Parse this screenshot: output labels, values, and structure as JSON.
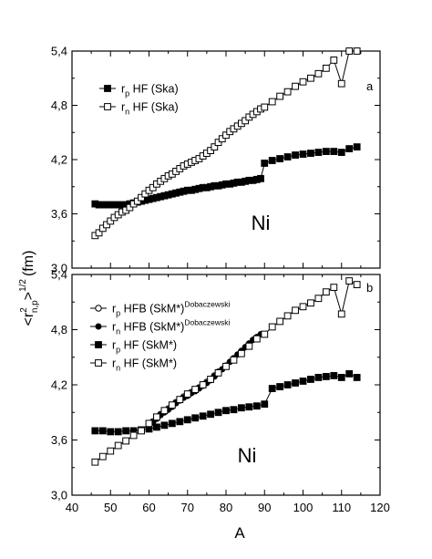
{
  "figure": {
    "x_axis_label": "A",
    "y_axis_label": {
      "base": "<r",
      "sup": "2",
      "sub": "n,p",
      "after": ">",
      "exp": "1/2",
      "unit": "(fm)"
    }
  },
  "chart_data": [
    {
      "type": "line",
      "panel_label": "a",
      "annotation": "Ni",
      "xlim": [
        40,
        120
      ],
      "ylim": [
        3.0,
        5.4
      ],
      "x_ticks": [
        "40",
        "50",
        "60",
        "70",
        "80",
        "90",
        "100",
        "110",
        "120"
      ],
      "y_ticks": [
        "3,0",
        "3,6",
        "4,2",
        "4,8",
        "5,4"
      ],
      "legend_placement": "top-left",
      "series": [
        {
          "label_main": "r",
          "label_sub": "p",
          "label_rest": " HF (Ska)",
          "marker": "filled-square",
          "x": [
            46,
            47,
            48,
            49,
            50,
            51,
            52,
            53,
            54,
            55,
            56,
            57,
            58,
            59,
            60,
            61,
            62,
            63,
            64,
            65,
            66,
            67,
            68,
            69,
            70,
            71,
            72,
            73,
            74,
            75,
            76,
            77,
            78,
            79,
            80,
            81,
            82,
            83,
            84,
            85,
            86,
            87,
            88,
            89,
            90,
            92,
            94,
            96,
            98,
            100,
            102,
            104,
            106,
            108,
            110,
            112,
            114
          ],
          "y": [
            3.71,
            3.7,
            3.7,
            3.7,
            3.7,
            3.7,
            3.7,
            3.7,
            3.7,
            3.71,
            3.72,
            3.73,
            3.74,
            3.75,
            3.76,
            3.77,
            3.78,
            3.79,
            3.8,
            3.81,
            3.82,
            3.83,
            3.84,
            3.85,
            3.86,
            3.86,
            3.87,
            3.88,
            3.89,
            3.89,
            3.9,
            3.91,
            3.91,
            3.92,
            3.93,
            3.93,
            3.94,
            3.95,
            3.95,
            3.96,
            3.97,
            3.97,
            3.98,
            3.99,
            4.16,
            4.19,
            4.21,
            4.23,
            4.25,
            4.26,
            4.27,
            4.28,
            4.29,
            4.29,
            4.28,
            4.32,
            4.34
          ]
        },
        {
          "label_main": "r",
          "label_sub": "n",
          "label_rest": " HF (Ska)",
          "marker": "open-square",
          "x": [
            46,
            47,
            48,
            49,
            50,
            51,
            52,
            53,
            54,
            55,
            56,
            57,
            58,
            59,
            60,
            61,
            62,
            63,
            64,
            65,
            66,
            67,
            68,
            69,
            70,
            71,
            72,
            73,
            74,
            75,
            76,
            77,
            78,
            79,
            80,
            81,
            82,
            83,
            84,
            85,
            86,
            87,
            88,
            89,
            90,
            92,
            94,
            96,
            98,
            100,
            102,
            104,
            106,
            108,
            110,
            112,
            114
          ],
          "y": [
            3.36,
            3.39,
            3.44,
            3.48,
            3.52,
            3.56,
            3.59,
            3.62,
            3.64,
            3.67,
            3.71,
            3.74,
            3.78,
            3.82,
            3.86,
            3.89,
            3.93,
            3.96,
            3.99,
            4.02,
            4.04,
            4.07,
            4.1,
            4.13,
            4.15,
            4.17,
            4.19,
            4.21,
            4.24,
            4.27,
            4.3,
            4.34,
            4.39,
            4.43,
            4.47,
            4.51,
            4.54,
            4.57,
            4.6,
            4.63,
            4.67,
            4.7,
            4.73,
            4.76,
            4.78,
            4.84,
            4.9,
            4.95,
            5.01,
            5.06,
            5.1,
            5.15,
            5.21,
            5.3,
            5.04,
            5.4,
            5.4
          ]
        }
      ]
    },
    {
      "type": "line",
      "panel_label": "b",
      "annotation": "Ni",
      "xlim": [
        40,
        120
      ],
      "ylim": [
        3.0,
        5.4
      ],
      "x_ticks": [
        "40",
        "50",
        "60",
        "70",
        "80",
        "90",
        "100",
        "110",
        "120"
      ],
      "y_ticks": [
        "3,0",
        "3,6",
        "4,2",
        "4,8",
        "5,4"
      ],
      "legend_placement": "top-left",
      "series": [
        {
          "label_main": "r",
          "label_sub": "p",
          "label_rest": " HFB (SkM*)",
          "label_sup": "Dobaczewski",
          "marker": "open-circle",
          "x": [
            60,
            61,
            62,
            63,
            64,
            65,
            66,
            67,
            68,
            69,
            70,
            71,
            72,
            73,
            74,
            75,
            76,
            77,
            78
          ],
          "y": [
            3.76,
            3.8,
            3.84,
            3.88,
            3.91,
            3.94,
            3.97,
            4.01,
            4.04,
            4.07,
            4.09,
            4.12,
            4.14,
            4.17,
            4.2,
            4.23,
            4.26,
            4.3,
            4.34
          ]
        },
        {
          "label_main": "r",
          "label_sub": "n",
          "label_rest": " HFB (SkM*)",
          "label_sup": "Dobaczewski",
          "marker": "filled-circle",
          "x": [
            60,
            61,
            62,
            63,
            64,
            65,
            66,
            67,
            68,
            69,
            70,
            71,
            72,
            73,
            74,
            75,
            76,
            77,
            78,
            79,
            80,
            81,
            82,
            83,
            84,
            85,
            86,
            87,
            88,
            89
          ],
          "y": [
            3.76,
            3.79,
            3.83,
            3.87,
            3.9,
            3.93,
            3.96,
            4.0,
            4.03,
            4.06,
            4.08,
            4.11,
            4.13,
            4.16,
            4.19,
            4.22,
            4.25,
            4.29,
            4.33,
            4.37,
            4.41,
            4.45,
            4.49,
            4.53,
            4.57,
            4.61,
            4.65,
            4.69,
            4.72,
            4.75
          ]
        },
        {
          "label_main": "r",
          "label_sub": "p",
          "label_rest": " HF (SkM*)",
          "marker": "filled-square",
          "x": [
            46,
            48,
            50,
            52,
            54,
            56,
            58,
            60,
            62,
            64,
            66,
            68,
            70,
            72,
            74,
            76,
            78,
            80,
            82,
            84,
            86,
            88,
            90,
            92,
            94,
            96,
            98,
            100,
            102,
            104,
            106,
            108,
            110,
            112,
            114
          ],
          "y": [
            3.7,
            3.7,
            3.69,
            3.69,
            3.7,
            3.7,
            3.71,
            3.72,
            3.74,
            3.76,
            3.78,
            3.8,
            3.82,
            3.84,
            3.86,
            3.88,
            3.9,
            3.92,
            3.93,
            3.95,
            3.96,
            3.97,
            3.99,
            4.16,
            4.18,
            4.2,
            4.22,
            4.24,
            4.26,
            4.28,
            4.29,
            4.3,
            4.28,
            4.32,
            4.28
          ]
        },
        {
          "label_main": "r",
          "label_sub": "n",
          "label_rest": " HF (SkM*)",
          "marker": "open-square",
          "x": [
            46,
            48,
            50,
            52,
            54,
            56,
            58,
            60,
            62,
            64,
            66,
            68,
            70,
            72,
            74,
            76,
            78,
            80,
            82,
            84,
            86,
            88,
            90,
            92,
            94,
            96,
            98,
            100,
            102,
            104,
            106,
            108,
            110,
            112,
            114
          ],
          "y": [
            3.36,
            3.42,
            3.48,
            3.54,
            3.59,
            3.65,
            3.7,
            3.78,
            3.85,
            3.92,
            3.98,
            4.04,
            4.1,
            4.15,
            4.2,
            4.26,
            4.33,
            4.4,
            4.47,
            4.54,
            4.62,
            4.7,
            4.75,
            4.83,
            4.89,
            4.95,
            5.01,
            5.05,
            5.09,
            5.14,
            5.21,
            5.26,
            4.97,
            5.33,
            5.29
          ]
        }
      ]
    }
  ]
}
